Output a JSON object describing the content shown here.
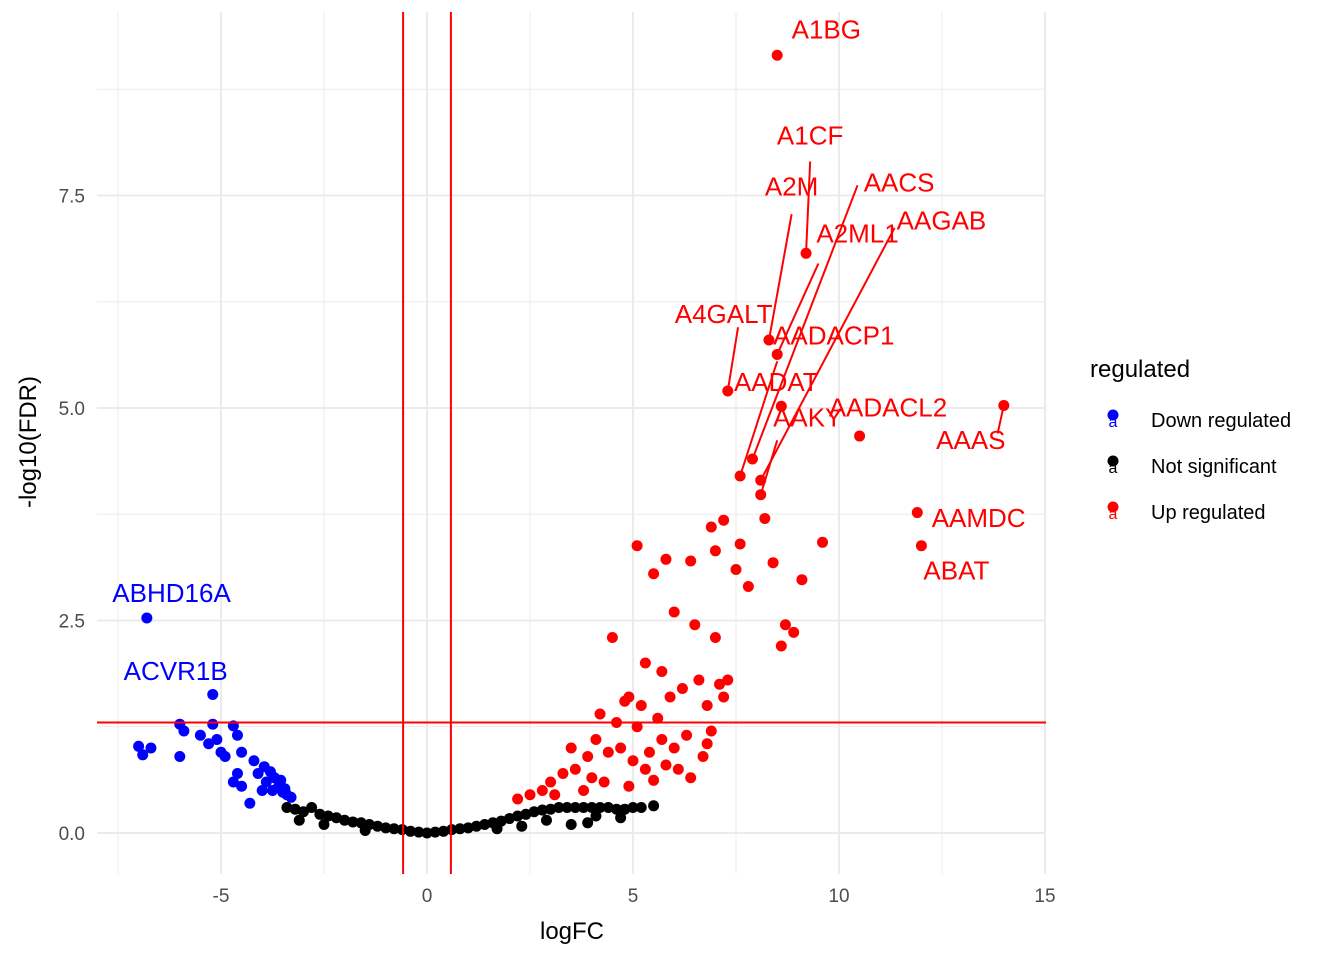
{
  "chart_data": {
    "type": "scatter",
    "xlabel": "logFC",
    "ylabel": "-log10(FDR)",
    "xlim": [
      -7.5,
      15
    ],
    "ylim": [
      -0.4,
      9.5
    ],
    "x_ticks": [
      -5,
      0,
      5,
      10,
      15
    ],
    "x_tick_labels": [
      "-5",
      "0",
      "5",
      "10",
      "15"
    ],
    "y_ticks": [
      0,
      2.5,
      5,
      7.5
    ],
    "y_tick_labels": [
      "0.0",
      "2.5",
      "5.0",
      "7.5"
    ],
    "grid": true,
    "legend_position": "right",
    "thresholds": {
      "logFC": [
        -0.58,
        0.58
      ],
      "neg_log10_fdr": 1.3,
      "color": "#ff0000"
    },
    "legend": {
      "title": "regulated",
      "key_glyph": "a",
      "items": [
        {
          "label": "Down regulated",
          "color": "#0000ff"
        },
        {
          "label": "Not significant",
          "color": "#000000"
        },
        {
          "label": "Up regulated",
          "color": "#ff0000"
        }
      ]
    },
    "series": [
      {
        "name": "Down regulated",
        "color": "#0000ff",
        "points": [
          [
            -6.8,
            2.53
          ],
          [
            -5.2,
            1.63
          ],
          [
            -7.0,
            1.02
          ],
          [
            -6.7,
            1.0
          ],
          [
            -6.9,
            0.92
          ],
          [
            -6.0,
            1.28
          ],
          [
            -5.9,
            1.2
          ],
          [
            -6.0,
            0.9
          ],
          [
            -5.5,
            1.15
          ],
          [
            -5.2,
            1.28
          ],
          [
            -5.1,
            1.1
          ],
          [
            -5.3,
            1.05
          ],
          [
            -5.0,
            0.95
          ],
          [
            -4.9,
            0.9
          ],
          [
            -4.7,
            1.26
          ],
          [
            -4.6,
            1.15
          ],
          [
            -4.5,
            0.95
          ],
          [
            -4.6,
            0.7
          ],
          [
            -4.5,
            0.55
          ],
          [
            -4.7,
            0.6
          ],
          [
            -4.3,
            0.35
          ],
          [
            -4.1,
            0.7
          ],
          [
            -3.9,
            0.6
          ],
          [
            -4.0,
            0.5
          ],
          [
            -3.8,
            0.72
          ],
          [
            -3.7,
            0.65
          ],
          [
            -3.6,
            0.55
          ],
          [
            -3.5,
            0.48
          ],
          [
            -3.4,
            0.45
          ],
          [
            -3.3,
            0.42
          ],
          [
            -4.2,
            0.85
          ],
          [
            -3.95,
            0.78
          ],
          [
            -3.75,
            0.5
          ],
          [
            -3.55,
            0.62
          ],
          [
            -3.45,
            0.52
          ]
        ]
      },
      {
        "name": "Up regulated",
        "color": "#ff0000",
        "points": [
          [
            8.5,
            9.15
          ],
          [
            9.2,
            6.82
          ],
          [
            8.3,
            5.8
          ],
          [
            8.5,
            5.63
          ],
          [
            7.3,
            5.2
          ],
          [
            8.6,
            5.02
          ],
          [
            14.0,
            5.03
          ],
          [
            10.5,
            4.67
          ],
          [
            7.9,
            4.4
          ],
          [
            8.1,
            4.15
          ],
          [
            7.6,
            4.2
          ],
          [
            8.1,
            3.98
          ],
          [
            11.9,
            3.77
          ],
          [
            12.0,
            3.38
          ],
          [
            9.6,
            3.42
          ],
          [
            8.2,
            3.7
          ],
          [
            7.2,
            3.68
          ],
          [
            6.9,
            3.6
          ],
          [
            7.6,
            3.4
          ],
          [
            5.1,
            3.38
          ],
          [
            5.5,
            3.05
          ],
          [
            5.8,
            3.22
          ],
          [
            6.4,
            3.2
          ],
          [
            7.0,
            3.32
          ],
          [
            7.5,
            3.1
          ],
          [
            7.8,
            2.9
          ],
          [
            8.4,
            3.18
          ],
          [
            9.1,
            2.98
          ],
          [
            8.7,
            2.45
          ],
          [
            8.9,
            2.36
          ],
          [
            8.6,
            2.2
          ],
          [
            4.5,
            2.3
          ],
          [
            6.0,
            2.6
          ],
          [
            6.5,
            2.45
          ],
          [
            7.0,
            2.3
          ],
          [
            4.9,
            1.6
          ],
          [
            7.3,
            1.8
          ],
          [
            7.1,
            1.75
          ],
          [
            5.3,
            2.0
          ],
          [
            5.7,
            1.9
          ],
          [
            6.2,
            1.7
          ],
          [
            6.8,
            1.5
          ],
          [
            7.2,
            1.6
          ],
          [
            4.2,
            1.4
          ],
          [
            4.8,
            1.55
          ],
          [
            5.1,
            1.25
          ],
          [
            5.6,
            1.35
          ],
          [
            6.3,
            1.15
          ],
          [
            6.8,
            1.05
          ],
          [
            3.5,
            1.0
          ],
          [
            3.9,
            0.9
          ],
          [
            4.1,
            1.1
          ],
          [
            4.4,
            0.95
          ],
          [
            4.7,
            1.0
          ],
          [
            5.0,
            0.85
          ],
          [
            5.4,
            0.95
          ],
          [
            5.8,
            0.8
          ],
          [
            6.1,
            0.75
          ],
          [
            6.4,
            0.65
          ],
          [
            6.7,
            0.9
          ],
          [
            3.0,
            0.6
          ],
          [
            3.3,
            0.7
          ],
          [
            3.6,
            0.75
          ],
          [
            2.5,
            0.45
          ],
          [
            2.8,
            0.5
          ],
          [
            2.2,
            0.4
          ],
          [
            4.6,
            1.3
          ],
          [
            5.2,
            1.5
          ],
          [
            5.9,
            1.6
          ],
          [
            6.6,
            1.8
          ],
          [
            4.3,
            0.6
          ],
          [
            4.9,
            0.55
          ],
          [
            5.5,
            0.62
          ],
          [
            6.0,
            1.0
          ],
          [
            6.9,
            1.2
          ],
          [
            3.8,
            0.5
          ],
          [
            4.0,
            0.65
          ],
          [
            3.1,
            0.45
          ],
          [
            5.3,
            0.75
          ],
          [
            5.7,
            1.1
          ]
        ]
      },
      {
        "name": "Not significant",
        "color": "#000000",
        "points": [
          [
            -3.4,
            0.3
          ],
          [
            -3.2,
            0.28
          ],
          [
            -3.0,
            0.25
          ],
          [
            -2.8,
            0.3
          ],
          [
            -2.6,
            0.22
          ],
          [
            -2.4,
            0.2
          ],
          [
            -2.2,
            0.18
          ],
          [
            -2.0,
            0.15
          ],
          [
            -1.8,
            0.13
          ],
          [
            -1.6,
            0.12
          ],
          [
            -1.4,
            0.1
          ],
          [
            -1.2,
            0.08
          ],
          [
            -1.0,
            0.06
          ],
          [
            -0.8,
            0.05
          ],
          [
            -0.6,
            0.04
          ],
          [
            -0.4,
            0.02
          ],
          [
            -0.2,
            0.01
          ],
          [
            0.0,
            0.0
          ],
          [
            0.2,
            0.01
          ],
          [
            0.4,
            0.02
          ],
          [
            0.6,
            0.04
          ],
          [
            0.8,
            0.05
          ],
          [
            1.0,
            0.06
          ],
          [
            1.2,
            0.08
          ],
          [
            1.4,
            0.1
          ],
          [
            1.6,
            0.12
          ],
          [
            1.8,
            0.14
          ],
          [
            2.0,
            0.17
          ],
          [
            2.2,
            0.2
          ],
          [
            2.4,
            0.22
          ],
          [
            2.6,
            0.25
          ],
          [
            2.8,
            0.27
          ],
          [
            3.0,
            0.28
          ],
          [
            3.2,
            0.3
          ],
          [
            3.4,
            0.3
          ],
          [
            3.6,
            0.3
          ],
          [
            3.8,
            0.3
          ],
          [
            4.0,
            0.3
          ],
          [
            4.2,
            0.3
          ],
          [
            4.4,
            0.3
          ],
          [
            4.6,
            0.28
          ],
          [
            4.8,
            0.28
          ],
          [
            5.0,
            0.3
          ],
          [
            5.2,
            0.3
          ],
          [
            5.5,
            0.32
          ],
          [
            2.9,
            0.15
          ],
          [
            3.5,
            0.1
          ],
          [
            4.1,
            0.2
          ],
          [
            1.7,
            0.05
          ],
          [
            -2.5,
            0.1
          ],
          [
            -3.1,
            0.15
          ],
          [
            -1.5,
            0.03
          ],
          [
            2.3,
            0.08
          ],
          [
            3.9,
            0.12
          ],
          [
            4.7,
            0.18
          ]
        ]
      }
    ],
    "annotations": [
      {
        "text": "A1BG",
        "color": "#ff0000",
        "x": 8.5,
        "y": 9.15,
        "label_x": 8.85,
        "label_y": 9.35,
        "anchor": "start",
        "line": false
      },
      {
        "text": "A1CF",
        "color": "#ff0000",
        "x": 9.2,
        "y": 6.82,
        "label_x": 9.3,
        "label_y": 8.1,
        "anchor": "middle",
        "line": true,
        "line_to": [
          9.3,
          7.9
        ]
      },
      {
        "text": "A2M",
        "color": "#ff0000",
        "x": 8.3,
        "y": 5.8,
        "label_x": 8.85,
        "label_y": 7.5,
        "anchor": "middle",
        "line": true,
        "line_to": [
          8.85,
          7.28
        ]
      },
      {
        "text": "AACS",
        "color": "#ff0000",
        "x": 7.9,
        "y": 4.4,
        "label_x": 10.6,
        "label_y": 7.55,
        "anchor": "start",
        "line": true,
        "line_to": [
          10.45,
          7.62
        ]
      },
      {
        "text": "A2ML1",
        "color": "#ff0000",
        "x": 8.5,
        "y": 5.63,
        "label_x": 9.45,
        "label_y": 6.95,
        "anchor": "start",
        "line": true,
        "line_to": [
          9.5,
          6.7
        ]
      },
      {
        "text": "AAGAB",
        "color": "#ff0000",
        "x": 8.1,
        "y": 4.15,
        "label_x": 11.4,
        "label_y": 7.1,
        "anchor": "start",
        "line": true,
        "line_to": [
          11.35,
          7.12
        ]
      },
      {
        "text": "A4GALT",
        "color": "#ff0000",
        "x": 7.3,
        "y": 5.2,
        "label_x": 7.2,
        "label_y": 6.0,
        "anchor": "middle",
        "line": true,
        "line_to": [
          7.55,
          5.95
        ]
      },
      {
        "text": "AADACP1",
        "color": "#ff0000",
        "x": 7.6,
        "y": 4.2,
        "label_x": 8.4,
        "label_y": 5.75,
        "anchor": "start",
        "line": true,
        "line_to": [
          8.5,
          5.55
        ]
      },
      {
        "text": "AADAT",
        "color": "#ff0000",
        "x": 7.3,
        "y": 5.2,
        "label_x": 7.45,
        "label_y": 5.2,
        "anchor": "start",
        "line": false
      },
      {
        "text": "AAKY",
        "color": "#ff0000",
        "x": 8.1,
        "y": 3.98,
        "label_x": 8.4,
        "label_y": 4.78,
        "anchor": "start",
        "line": true,
        "line_to": [
          8.5,
          4.62
        ]
      },
      {
        "text": "AADACL2",
        "color": "#ff0000",
        "x": 10.5,
        "y": 4.67,
        "label_x": 9.75,
        "label_y": 4.9,
        "anchor": "start",
        "line": false
      },
      {
        "text": "AAAS",
        "color": "#ff0000",
        "x": 14.0,
        "y": 5.03,
        "label_x": 13.2,
        "label_y": 4.52,
        "anchor": "middle",
        "line": true,
        "line_to": [
          13.85,
          4.7
        ]
      },
      {
        "text": "AAMDC",
        "color": "#ff0000",
        "x": 11.9,
        "y": 3.77,
        "label_x": 12.25,
        "label_y": 3.6,
        "anchor": "start",
        "line": false
      },
      {
        "text": "ABAT",
        "color": "#ff0000",
        "x": 12.0,
        "y": 3.38,
        "label_x": 12.85,
        "label_y": 2.98,
        "anchor": "middle",
        "line": false
      },
      {
        "text": "ABHD16A",
        "color": "#0000ff",
        "x": -6.8,
        "y": 2.53,
        "label_x": -6.2,
        "label_y": 2.72,
        "anchor": "middle",
        "line": false
      },
      {
        "text": "ACVR1B",
        "color": "#0000ff",
        "x": -5.2,
        "y": 1.63,
        "label_x": -6.1,
        "label_y": 1.8,
        "anchor": "middle",
        "line": false
      }
    ]
  }
}
